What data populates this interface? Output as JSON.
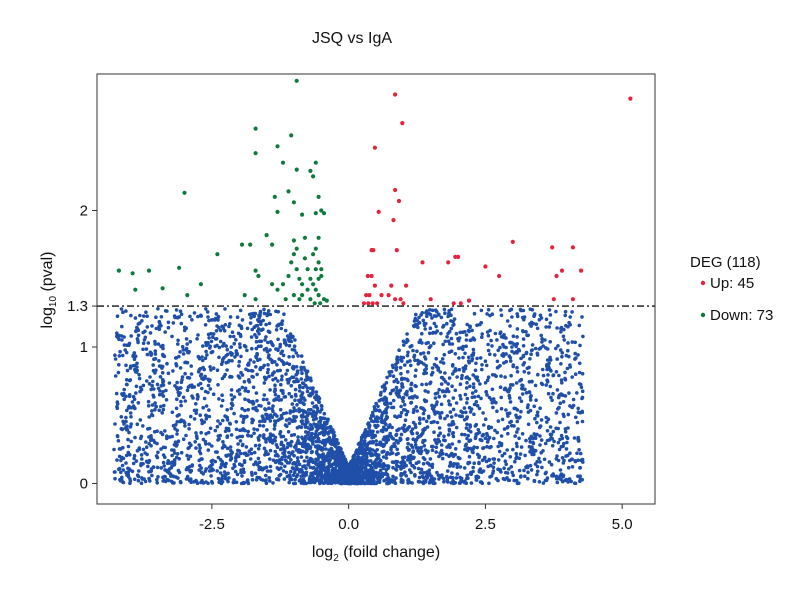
{
  "chart_data": {
    "type": "scatter",
    "title": "JSQ vs IgA",
    "xlabel": {
      "prefix": "log",
      "sub": "2",
      "suffix": " (foild change)"
    },
    "ylabel": {
      "prefix": "log",
      "sub": "10",
      "suffix": " (pval)"
    },
    "xlim": [
      -4.6,
      5.6
    ],
    "ylim": [
      -0.15,
      3.0
    ],
    "x_ticks": [
      {
        "value": -2.5,
        "label": "-2.5"
      },
      {
        "value": 0.0,
        "label": "0.0"
      },
      {
        "value": 2.5,
        "label": "2.5"
      },
      {
        "value": 5.0,
        "label": "5.0"
      }
    ],
    "y_ticks": [
      {
        "value": 0,
        "label": "0"
      },
      {
        "value": 1,
        "label": "1"
      },
      {
        "value": 1.3,
        "label": "1.3"
      },
      {
        "value": 2,
        "label": "2"
      }
    ],
    "threshold": {
      "y": 1.3,
      "style": "dash-dot"
    },
    "colors": {
      "up": "#e8203c",
      "down": "#0e7a3e",
      "ns": "#1f4fa8"
    },
    "legend": {
      "title": "DEG (118)",
      "position": "right",
      "items": [
        {
          "key": "up",
          "label": "Up: 45"
        },
        {
          "key": "down",
          "label": "Down: 73"
        }
      ]
    },
    "series": [
      {
        "name": "Up: 45",
        "key": "up",
        "points": [
          [
            0.85,
            2.85
          ],
          [
            5.15,
            2.82
          ],
          [
            0.98,
            2.64
          ],
          [
            0.48,
            2.46
          ],
          [
            0.85,
            2.15
          ],
          [
            0.92,
            2.07
          ],
          [
            0.55,
            1.99
          ],
          [
            0.82,
            1.93
          ],
          [
            3.0,
            1.77
          ],
          [
            3.72,
            1.73
          ],
          [
            4.1,
            1.73
          ],
          [
            0.42,
            1.71
          ],
          [
            0.45,
            1.71
          ],
          [
            0.88,
            1.71
          ],
          [
            1.95,
            1.66
          ],
          [
            2.0,
            1.66
          ],
          [
            1.35,
            1.62
          ],
          [
            1.82,
            1.62
          ],
          [
            2.5,
            1.59
          ],
          [
            3.9,
            1.56
          ],
          [
            4.25,
            1.56
          ],
          [
            0.35,
            1.52
          ],
          [
            0.42,
            1.52
          ],
          [
            2.75,
            1.52
          ],
          [
            3.8,
            1.52
          ],
          [
            0.48,
            1.45
          ],
          [
            0.78,
            1.45
          ],
          [
            1.05,
            1.45
          ],
          [
            0.32,
            1.38
          ],
          [
            0.38,
            1.38
          ],
          [
            0.6,
            1.38
          ],
          [
            0.73,
            1.38
          ],
          [
            0.85,
            1.35
          ],
          [
            0.95,
            1.35
          ],
          [
            1.5,
            1.35
          ],
          [
            2.2,
            1.34
          ],
          [
            3.75,
            1.35
          ],
          [
            4.1,
            1.35
          ],
          [
            0.28,
            1.32
          ],
          [
            0.36,
            1.32
          ],
          [
            0.44,
            1.32
          ],
          [
            0.52,
            1.32
          ],
          [
            1.0,
            1.32
          ],
          [
            1.92,
            1.32
          ],
          [
            2.05,
            1.32
          ]
        ]
      },
      {
        "name": "Down: 73",
        "key": "down",
        "points": [
          [
            -0.95,
            2.95
          ],
          [
            -1.7,
            2.6
          ],
          [
            -1.05,
            2.55
          ],
          [
            -1.3,
            2.47
          ],
          [
            -1.7,
            2.42
          ],
          [
            -1.2,
            2.35
          ],
          [
            -0.6,
            2.35
          ],
          [
            -0.95,
            2.3
          ],
          [
            -0.7,
            2.29
          ],
          [
            -0.65,
            2.25
          ],
          [
            -3.0,
            2.13
          ],
          [
            -1.1,
            2.14
          ],
          [
            -1.35,
            2.1
          ],
          [
            -0.55,
            2.1
          ],
          [
            -1.0,
            2.06
          ],
          [
            -0.5,
            2.0
          ],
          [
            -0.6,
            1.98
          ],
          [
            -0.45,
            1.98
          ],
          [
            -1.3,
            1.99
          ],
          [
            -0.85,
            1.97
          ],
          [
            -1.5,
            1.82
          ],
          [
            -1.0,
            1.78
          ],
          [
            -0.8,
            1.8
          ],
          [
            -0.55,
            1.8
          ],
          [
            -1.4,
            1.75
          ],
          [
            -1.8,
            1.75
          ],
          [
            -1.95,
            1.75
          ],
          [
            -0.95,
            1.72
          ],
          [
            -0.6,
            1.72
          ],
          [
            -2.4,
            1.68
          ],
          [
            -1.0,
            1.68
          ],
          [
            -0.65,
            1.68
          ],
          [
            -0.8,
            1.65
          ],
          [
            -1.05,
            1.62
          ],
          [
            -0.55,
            1.62
          ],
          [
            -3.1,
            1.58
          ],
          [
            -3.65,
            1.56
          ],
          [
            -4.2,
            1.56
          ],
          [
            -1.7,
            1.56
          ],
          [
            -0.95,
            1.57
          ],
          [
            -0.75,
            1.57
          ],
          [
            -0.6,
            1.57
          ],
          [
            -0.5,
            1.57
          ],
          [
            -3.95,
            1.54
          ],
          [
            -1.65,
            1.52
          ],
          [
            -1.1,
            1.52
          ],
          [
            -0.9,
            1.5
          ],
          [
            -0.7,
            1.5
          ],
          [
            -0.55,
            1.5
          ],
          [
            -0.5,
            1.52
          ],
          [
            -2.7,
            1.46
          ],
          [
            -1.4,
            1.46
          ],
          [
            -1.2,
            1.46
          ],
          [
            -0.85,
            1.46
          ],
          [
            -0.65,
            1.46
          ],
          [
            -3.9,
            1.42
          ],
          [
            -3.4,
            1.43
          ],
          [
            -1.3,
            1.42
          ],
          [
            -0.75,
            1.42
          ],
          [
            -0.6,
            1.42
          ],
          [
            -2.95,
            1.38
          ],
          [
            -1.9,
            1.38
          ],
          [
            -1.0,
            1.38
          ],
          [
            -0.85,
            1.38
          ],
          [
            -0.55,
            1.38
          ],
          [
            -1.7,
            1.35
          ],
          [
            -1.15,
            1.35
          ],
          [
            -0.9,
            1.35
          ],
          [
            -0.7,
            1.35
          ],
          [
            -0.45,
            1.35
          ],
          [
            -0.4,
            1.34
          ],
          [
            -0.62,
            1.32
          ],
          [
            -0.52,
            1.32
          ]
        ]
      }
    ]
  }
}
